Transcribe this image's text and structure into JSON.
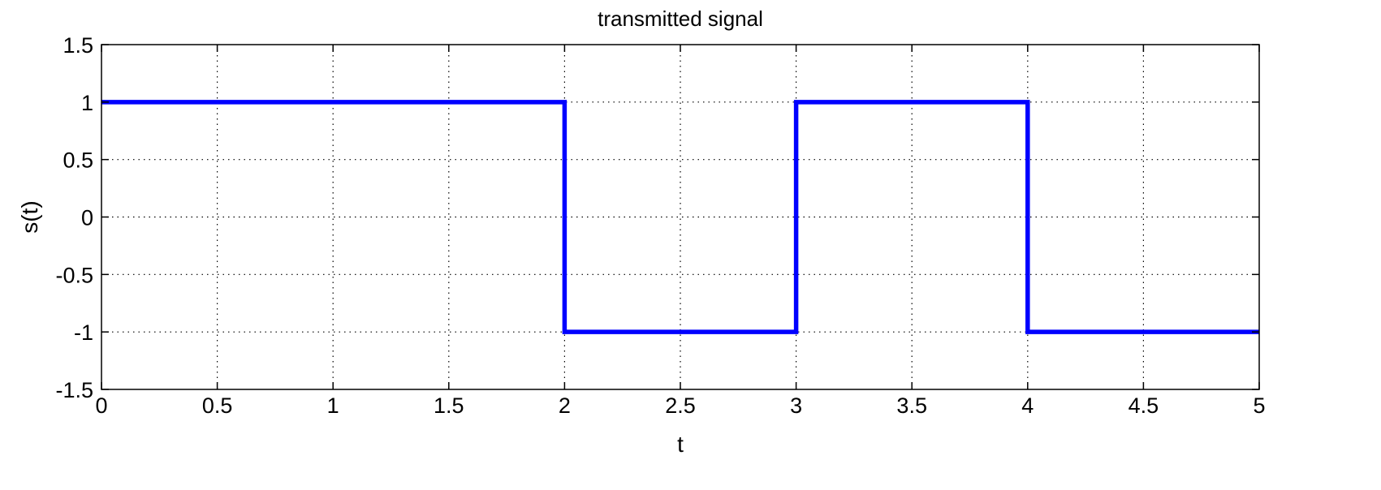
{
  "chart_data": {
    "type": "line",
    "title": "transmitted signal",
    "xlabel": "t",
    "ylabel": "s(t)",
    "xlim": [
      0,
      5
    ],
    "ylim": [
      -1.5,
      1.5
    ],
    "grid": true,
    "xticks": [
      0,
      0.5,
      1,
      1.5,
      2,
      2.5,
      3,
      3.5,
      4,
      4.5,
      5
    ],
    "yticks": [
      -1.5,
      -1,
      -0.5,
      0,
      0.5,
      1,
      1.5
    ],
    "series": [
      {
        "color": "#0000ff",
        "step": "post",
        "x": [
          0,
          2,
          3,
          4,
          5
        ],
        "y": [
          1,
          -1,
          1,
          -1,
          -1
        ]
      }
    ]
  }
}
